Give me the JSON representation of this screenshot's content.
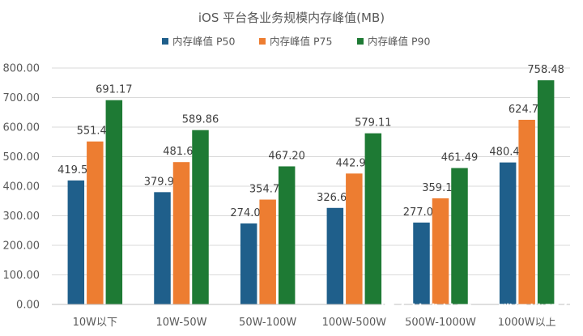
{
  "chart_data": {
    "type": "bar",
    "title": "iOS 平台各业务规模内存峰值(MB)",
    "categories": [
      "10W以下",
      "10W-50W",
      "50W-100W",
      "100W-500W",
      "500W-1000W",
      "1000W以上"
    ],
    "series": [
      {
        "name": "内存峰值 P50",
        "values": [
          419.56,
          379.9,
          274.0,
          326.61,
          277.05,
          480.44
        ],
        "color": "#1F5F8B"
      },
      {
        "name": "内存峰值 P75",
        "values": [
          551.45,
          481.64,
          354.73,
          442.94,
          359.16,
          624.77
        ],
        "color": "#ED7D31"
      },
      {
        "name": "内存峰值 P90",
        "values": [
          691.17,
          589.86,
          467.2,
          579.11,
          461.49,
          758.48
        ],
        "color": "#1E7A34"
      }
    ],
    "y_ticks": [
      "0.00",
      "100.00",
      "200.00",
      "300.00",
      "400.00",
      "500.00",
      "600.00",
      "700.00",
      "800.00"
    ],
    "ylim": [
      0,
      800
    ],
    "grid": true,
    "legend_position": "top",
    "xlabel": "",
    "ylabel": ""
  },
  "watermark": {
    "text": "掘金技术社区 @ 腾讯端服务"
  }
}
